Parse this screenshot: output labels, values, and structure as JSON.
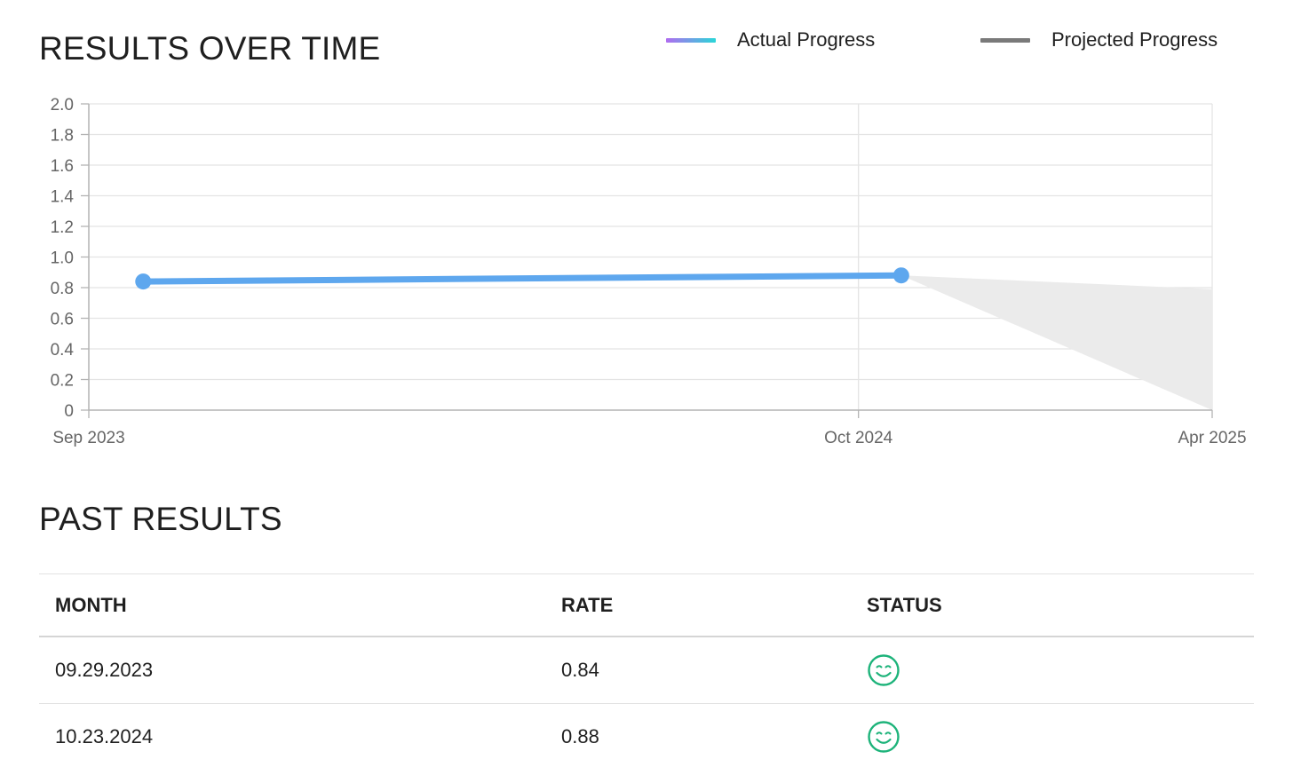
{
  "chart_section": {
    "title": "RESULTS OVER TIME"
  },
  "legend": [
    {
      "label": "Actual Progress"
    },
    {
      "label": "Projected Progress"
    }
  ],
  "chart_data": {
    "type": "line",
    "title": "RESULTS OVER TIME",
    "x_ticks": [
      "Sep 2023",
      "Oct 2024",
      "Apr 2025"
    ],
    "y_ticks": [
      "0",
      "0.2",
      "0.4",
      "0.6",
      "0.8",
      "1.0",
      "1.2",
      "1.4",
      "1.6",
      "1.8",
      "2.0"
    ],
    "ylim": [
      0,
      2.0
    ],
    "xlim": [
      "2023-09",
      "2025-04"
    ],
    "grid": true,
    "legend_position": "top-right",
    "series": [
      {
        "name": "Actual Progress",
        "points": [
          {
            "x": "2023-09-29",
            "y": 0.84
          },
          {
            "x": "2024-10-23",
            "y": 0.88
          }
        ],
        "color": "#5ea7ee"
      },
      {
        "name": "Projected Progress",
        "band": {
          "start": {
            "x": "2024-10-23",
            "y": 0.88
          },
          "end_x": "2025-04",
          "end_upper": 0.79,
          "end_lower": 0
        },
        "color": "#ebebeb"
      }
    ]
  },
  "table_section": {
    "title": "PAST RESULTS"
  },
  "table": {
    "headers": {
      "month": "MONTH",
      "rate": "RATE",
      "status": "STATUS"
    },
    "rows": [
      {
        "month": "09.29.2023",
        "rate": "0.84",
        "status_icon": "smile-icon"
      },
      {
        "month": "10.23.2024",
        "rate": "0.88",
        "status_icon": "smile-icon"
      }
    ]
  },
  "colors": {
    "actual_line": "#5ea7ee",
    "projected_fill": "#ebebeb",
    "status_good": "#1db37a",
    "grid": "#e4e4e4",
    "axis": "#b3b3b3"
  }
}
